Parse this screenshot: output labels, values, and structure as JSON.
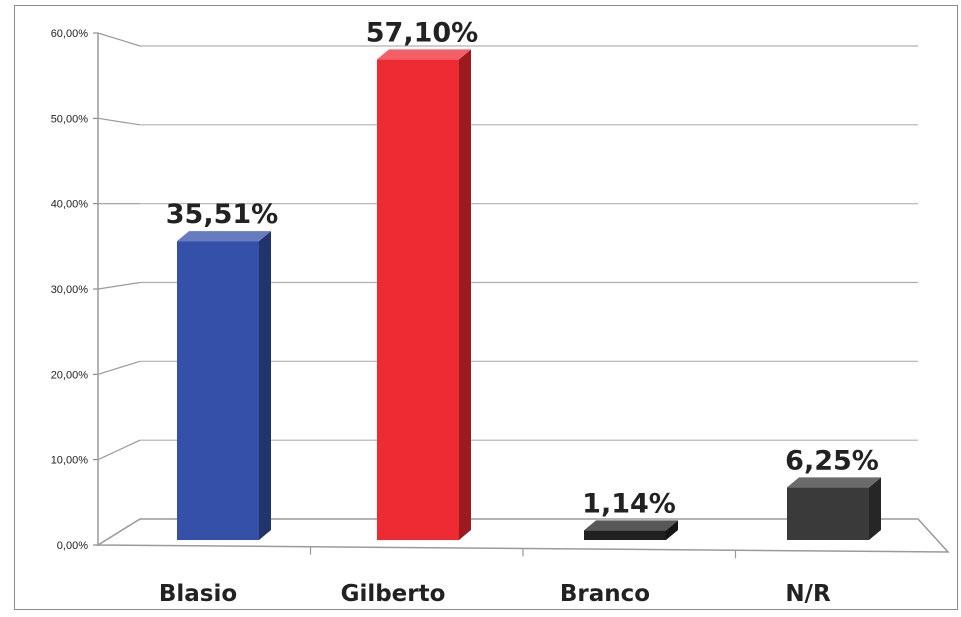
{
  "chart_data": {
    "type": "bar",
    "categories": [
      "Blasio",
      "Gilberto",
      "Branco",
      "N/R"
    ],
    "values": [
      35.51,
      57.1,
      1.14,
      6.25
    ],
    "data_labels": [
      "35,51%",
      "57,10%",
      "1,14%",
      "6,25%"
    ],
    "colors": [
      "#3450a8",
      "#ee2a33",
      "#202020",
      "#3a3a3a"
    ],
    "ylim": [
      0,
      60
    ],
    "yticks": [
      0,
      10,
      20,
      30,
      40,
      50,
      60
    ],
    "ytick_labels": [
      "0,00%",
      "10,00%",
      "20,00%",
      "30,00%",
      "40,00%",
      "50,00%",
      "60,00%"
    ],
    "grid": true,
    "style": "3d-column",
    "title": "",
    "xlabel": "",
    "ylabel": ""
  }
}
